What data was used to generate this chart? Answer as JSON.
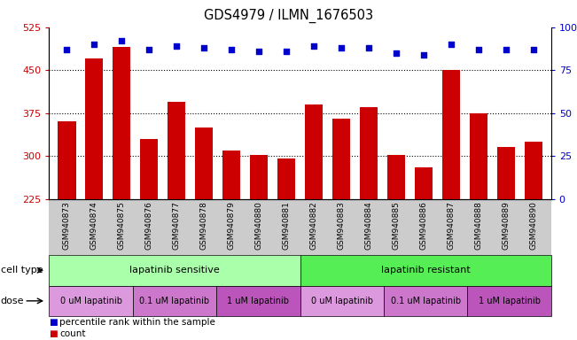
{
  "title": "GDS4979 / ILMN_1676503",
  "samples": [
    "GSM940873",
    "GSM940874",
    "GSM940875",
    "GSM940876",
    "GSM940877",
    "GSM940878",
    "GSM940879",
    "GSM940880",
    "GSM940881",
    "GSM940882",
    "GSM940883",
    "GSM940884",
    "GSM940885",
    "GSM940886",
    "GSM940887",
    "GSM940888",
    "GSM940889",
    "GSM940890"
  ],
  "bar_values": [
    360,
    470,
    490,
    330,
    395,
    350,
    310,
    302,
    295,
    390,
    365,
    385,
    302,
    280,
    450,
    375,
    315,
    325
  ],
  "percentile_values": [
    87,
    90,
    92,
    87,
    89,
    88,
    87,
    86,
    86,
    89,
    88,
    88,
    85,
    84,
    90,
    87,
    87,
    87
  ],
  "ylim_left": [
    225,
    525
  ],
  "ylim_right": [
    0,
    100
  ],
  "yticks_left": [
    225,
    300,
    375,
    450,
    525
  ],
  "yticks_right": [
    0,
    25,
    50,
    75,
    100
  ],
  "bar_color": "#cc0000",
  "dot_color": "#0000cc",
  "cell_type_sensitive_color": "#aaffaa",
  "cell_type_resistant_color": "#55ee55",
  "dose_color_0": "#dd99dd",
  "dose_color_01": "#cc77cc",
  "dose_color_1": "#bb55bb",
  "dose_labels": [
    "0 uM lapatinib",
    "0.1 uM lapatinib",
    "1 uM lapatinib"
  ],
  "cell_type_sensitive_label": "lapatinib sensitive",
  "cell_type_resistant_label": "lapatinib resistant",
  "cell_type_label": "cell type",
  "dose_label": "dose",
  "legend_count": "count",
  "legend_percentile": "percentile rank within the sample",
  "bar_width": 0.65,
  "tick_bg_color": "#cccccc",
  "n_sensitive": 9,
  "n_resistant": 9,
  "dose_group_size": 3
}
